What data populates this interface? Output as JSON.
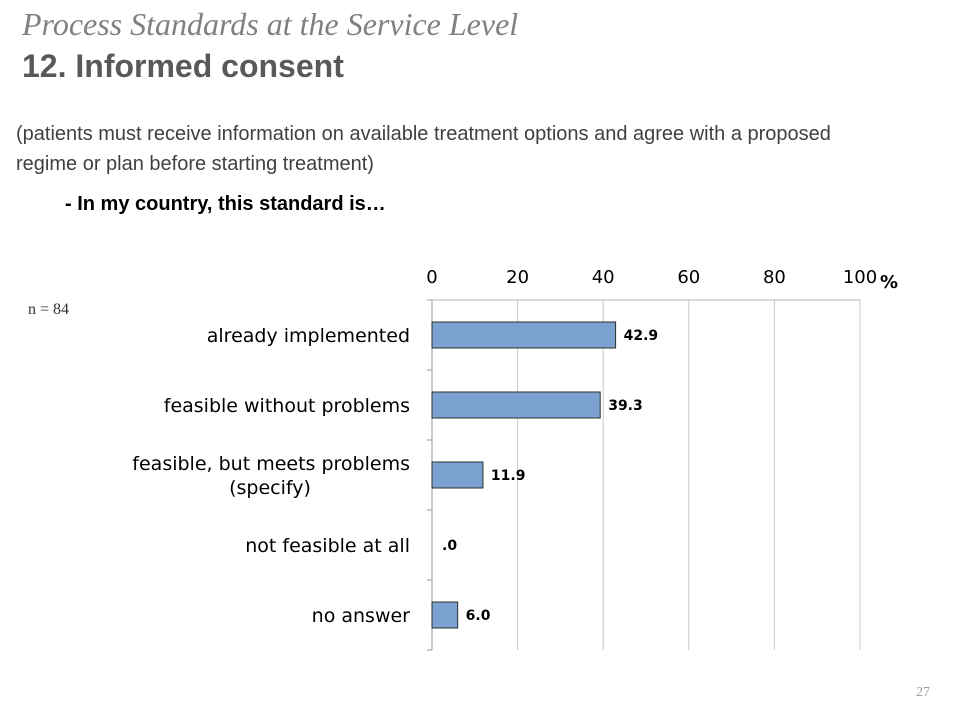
{
  "header": {
    "section_title": "Process Standards at the Service Level",
    "standard_title": "12. Informed consent"
  },
  "description": "(patients must receive information on available treatment options and agree with a proposed regime or plan before starting treatment)",
  "question": "- In my country, this standard is…",
  "sample_size": "n = 84",
  "page_number": "27",
  "chart_data": {
    "type": "bar",
    "orientation": "horizontal",
    "categories": [
      [
        "already implemented"
      ],
      [
        "feasible without problems"
      ],
      [
        "feasible, but meets problems",
        "(specify)"
      ],
      [
        "not feasible at all"
      ],
      [
        "no answer"
      ]
    ],
    "values": [
      42.9,
      39.3,
      11.9,
      0.0,
      6.0
    ],
    "data_labels": [
      "42.9",
      "39.3",
      "11.9",
      ".0",
      "6.0"
    ],
    "xlim": [
      0,
      100
    ],
    "xticks": [
      0,
      20,
      40,
      60,
      80,
      100
    ],
    "xtick_labels": [
      "0",
      "20",
      "40",
      "60",
      "80",
      "100"
    ],
    "unit_label": "%",
    "axis_position": "top",
    "grid": true,
    "bar_color": "#7aa1cf",
    "bar_edge_color": "#2e2e2e"
  }
}
